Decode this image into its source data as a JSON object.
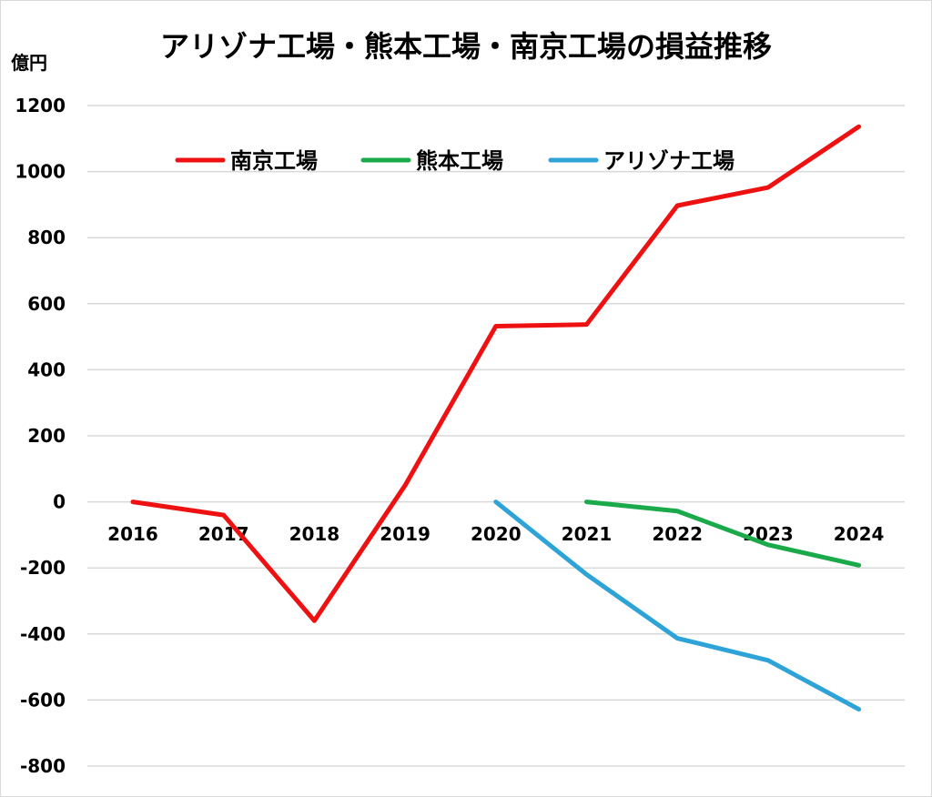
{
  "chart_data": {
    "type": "line",
    "title": "アリゾナ工場・熊本工場・南京工場の損益推移",
    "ylabel": "億円",
    "xlabel": "",
    "ylim": [
      -800,
      1200
    ],
    "yticks": [
      1200,
      1000,
      800,
      600,
      400,
      200,
      0,
      -200,
      -400,
      -600,
      -800
    ],
    "categories": [
      "2016",
      "2017",
      "2018",
      "2019",
      "2020",
      "2021",
      "2022",
      "2023",
      "2024"
    ],
    "grid": true,
    "legend_position": "top",
    "series": [
      {
        "name": "南京工場",
        "color": "#ee1111",
        "values": [
          0,
          -40,
          -360,
          50,
          532,
          537,
          897,
          952,
          1136
        ]
      },
      {
        "name": "熊本工場",
        "color": "#1aaa4a",
        "values": [
          null,
          null,
          null,
          null,
          null,
          0,
          -28,
          -130,
          -192
        ]
      },
      {
        "name": "アリゾナ工場",
        "color": "#2ea3d8",
        "values": [
          null,
          null,
          null,
          null,
          0,
          -220,
          -413,
          -480,
          -628
        ]
      }
    ]
  }
}
